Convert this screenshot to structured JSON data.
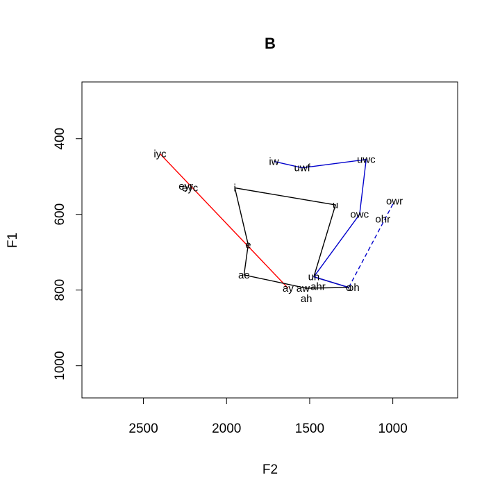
{
  "chart_data": {
    "type": "line",
    "title": "B",
    "xlabel": "F2",
    "ylabel": "F1",
    "x_reversed": true,
    "y_reversed": true,
    "xlim": [
      2870,
      610
    ],
    "ylim": [
      1085,
      250
    ],
    "xticks": [
      2500,
      2000,
      1500,
      1000
    ],
    "yticks": [
      400,
      600,
      800,
      1000
    ],
    "grid": false,
    "points": [
      {
        "label": "iyc",
        "f2": 2400,
        "f1": 440
      },
      {
        "label": "eyr",
        "f2": 2245,
        "f1": 525
      },
      {
        "label": "eyc",
        "f2": 2220,
        "f1": 530
      },
      {
        "label": "i",
        "f2": 1950,
        "f1": 530
      },
      {
        "label": "iw",
        "f2": 1715,
        "f1": 460
      },
      {
        "label": "uwf",
        "f2": 1545,
        "f1": 477
      },
      {
        "label": "uwc",
        "f2": 1160,
        "f1": 455
      },
      {
        "label": "u",
        "f2": 1345,
        "f1": 575
      },
      {
        "label": "owr",
        "f2": 990,
        "f1": 565
      },
      {
        "label": "owc",
        "f2": 1200,
        "f1": 600
      },
      {
        "label": "ohr",
        "f2": 1060,
        "f1": 612
      },
      {
        "label": "e",
        "f2": 1870,
        "f1": 680
      },
      {
        "label": "ae",
        "f2": 1895,
        "f1": 760
      },
      {
        "label": "uh",
        "f2": 1475,
        "f1": 765
      },
      {
        "label": "ay",
        "f2": 1630,
        "f1": 795
      },
      {
        "label": "aw",
        "f2": 1540,
        "f1": 795
      },
      {
        "label": "ahr",
        "f2": 1450,
        "f1": 790
      },
      {
        "label": "o",
        "f2": 1265,
        "f1": 793
      },
      {
        "label": "oh",
        "f2": 1235,
        "f1": 793
      },
      {
        "label": "ah",
        "f2": 1520,
        "f1": 823
      }
    ],
    "series": [
      {
        "color": "#ff0000",
        "dash": false,
        "points": [
          [
            2400,
            440
          ],
          [
            1630,
            795
          ]
        ]
      },
      {
        "color": "#000000",
        "dash": false,
        "points": [
          [
            1950,
            530
          ],
          [
            1870,
            680
          ],
          [
            1895,
            760
          ],
          [
            1520,
            795
          ],
          [
            1265,
            793
          ],
          [
            1475,
            765
          ],
          [
            1345,
            575
          ],
          [
            1950,
            530
          ]
        ]
      },
      {
        "color": "#0000cc",
        "dash": false,
        "points": [
          [
            1715,
            460
          ],
          [
            1545,
            477
          ],
          [
            1160,
            455
          ],
          [
            1200,
            600
          ],
          [
            1475,
            765
          ]
        ]
      },
      {
        "color": "#0000cc",
        "dash": false,
        "points": [
          [
            1475,
            765
          ],
          [
            1265,
            793
          ]
        ]
      },
      {
        "color": "#0000cc",
        "dash": true,
        "points": [
          [
            1265,
            793
          ],
          [
            990,
            565
          ]
        ]
      }
    ]
  }
}
